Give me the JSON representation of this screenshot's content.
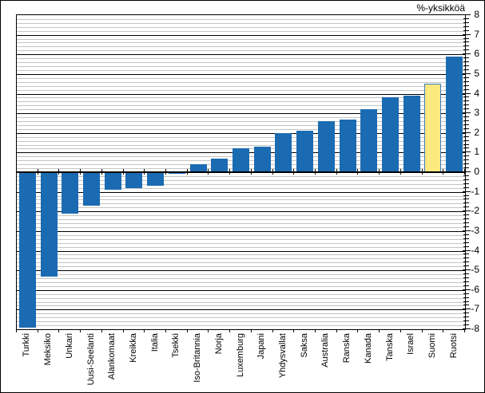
{
  "title": "%-yksikköä",
  "chart_data": {
    "type": "bar",
    "title": "%-yksikköä",
    "xlabel": "",
    "ylabel": "%-yksikköä",
    "categories": [
      "Turkki",
      "Meksiko",
      "Unkari",
      "Uusi-Seelanti",
      "Alankomaat",
      "Kreikka",
      "Italia",
      "Tsekki",
      "Iso-Britannia",
      "Norja",
      "Luxemburg",
      "Japani",
      "Yhdysvallat",
      "Saksa",
      "Australia",
      "Ranska",
      "Kanada",
      "Tanska",
      "Israel",
      "Suomi",
      "Ruotsi"
    ],
    "values": [
      -7.9,
      -5.3,
      -2.1,
      -1.7,
      -0.9,
      -0.8,
      -0.7,
      -0.1,
      0.4,
      0.7,
      1.2,
      1.3,
      2.0,
      2.1,
      2.6,
      2.7,
      3.2,
      3.8,
      3.9,
      4.5,
      5.9
    ],
    "highlight_category": "Suomi",
    "ylim": [
      -8,
      8
    ],
    "y_major_step": 1,
    "y_minor_step": 0.2,
    "y_tick_labels": [
      "8",
      "7",
      "6",
      "5",
      "4",
      "3",
      "2",
      "1",
      "0",
      "-1",
      "-2",
      "-3",
      "-4",
      "-5",
      "-6",
      "-7",
      "-8"
    ],
    "grid": "on",
    "legend": "none",
    "colors": {
      "bar": "#1B6BB2",
      "highlight_fill": "#FCE97F",
      "highlight_border": "#3A7BBE",
      "minor_gridline": "#C4C4C4",
      "major_gridline": "#000000",
      "axis": "#000000",
      "background": "#FFFFFF"
    }
  }
}
